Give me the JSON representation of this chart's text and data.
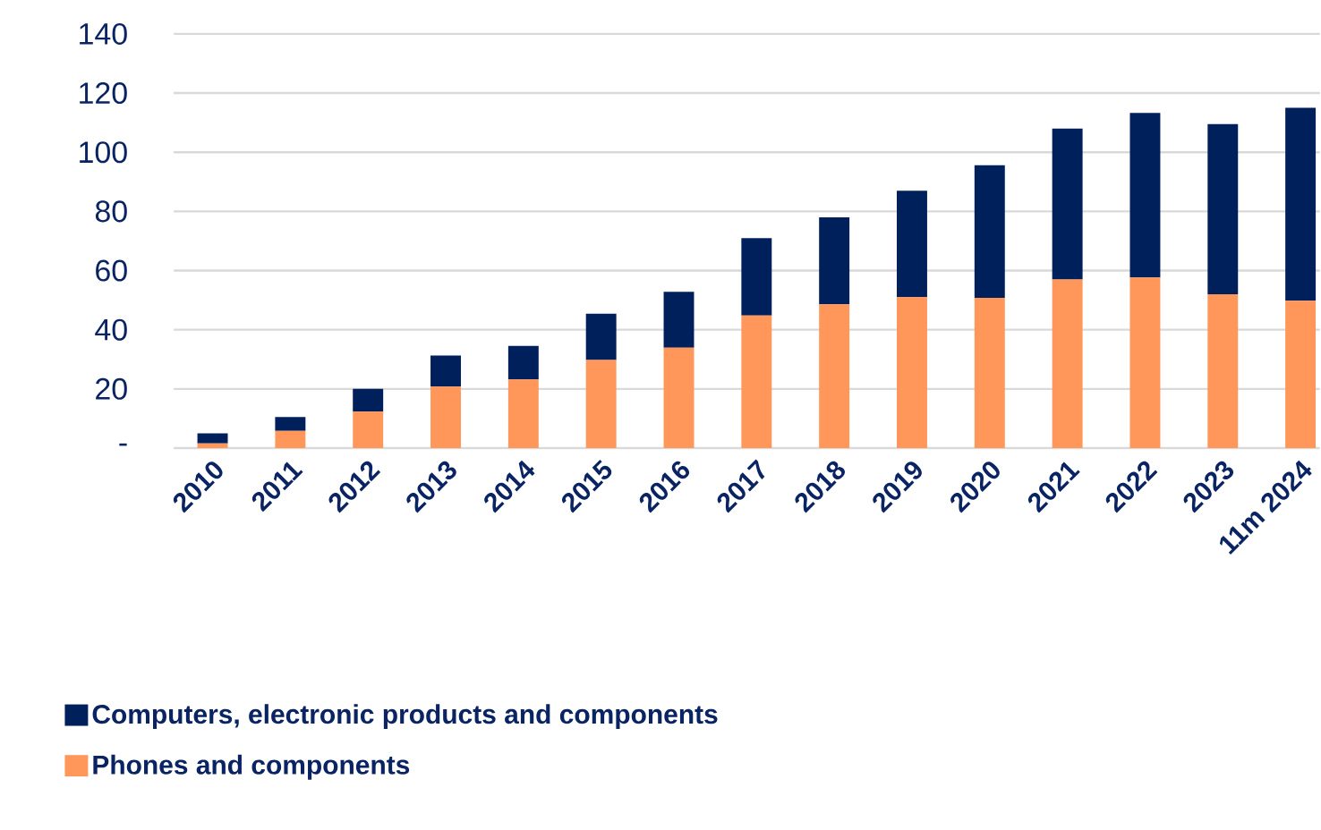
{
  "chart_data": {
    "type": "bar",
    "stacked": true,
    "categories": [
      "2010",
      "2011",
      "2012",
      "2013",
      "2014",
      "2015",
      "2016",
      "2017",
      "2018",
      "2019",
      "2020",
      "2021",
      "2022",
      "2023",
      "11m 2024"
    ],
    "series": [
      {
        "name": "Phones and components",
        "color": "#ff965a",
        "values": [
          1.6,
          5.8,
          12.3,
          20.8,
          23.2,
          29.8,
          33.9,
          44.8,
          48.6,
          51,
          50.8,
          57,
          57.7,
          52,
          49.8
        ]
      },
      {
        "name": "Computers, electronic products and components",
        "color": "#00205b",
        "values": [
          3.4,
          4.7,
          7.7,
          10.5,
          11.3,
          15.6,
          18.9,
          26.2,
          29.4,
          36,
          44.8,
          51,
          55.6,
          57.5,
          65.2
        ]
      }
    ],
    "ylim": [
      0,
      140
    ],
    "yticks": [
      {
        "value": 0,
        "label": "-"
      },
      20,
      40,
      60,
      80,
      100,
      120,
      140
    ],
    "grid": "y",
    "legend": "bottom"
  }
}
